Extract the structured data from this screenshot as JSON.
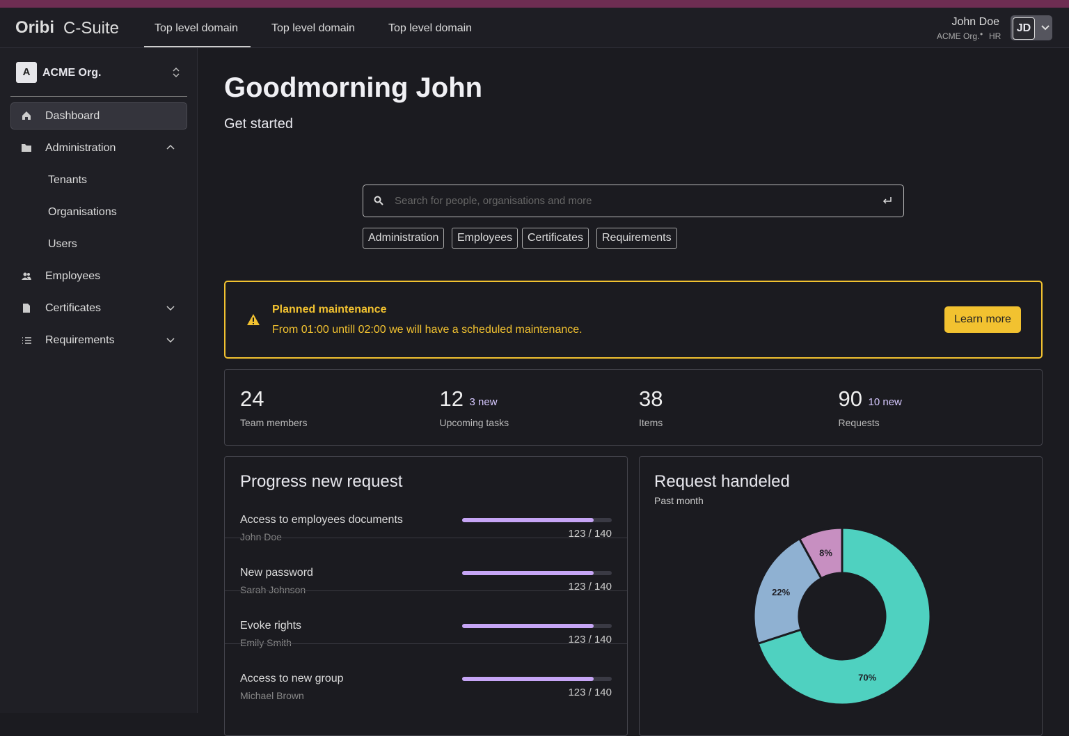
{
  "header": {
    "brand": "Oribi",
    "product": "C-Suite",
    "tabs": [
      "Top level domain",
      "Top level domain",
      "Top level domain"
    ],
    "user": {
      "name": "John Doe",
      "org": "ACME Org.",
      "role": "HR",
      "initials": "JD"
    }
  },
  "sidebar": {
    "org_initial": "A",
    "org_name": "ACME Org.",
    "nav": [
      "Dashboard",
      "Administration",
      "Employees",
      "Certificates",
      "Requirements"
    ],
    "admin_children": [
      "Tenants",
      "Organisations",
      "Users"
    ]
  },
  "main": {
    "greeting": "Goodmorning John",
    "subtitle": "Get started",
    "search_placeholder": "Search for people, organisations and more",
    "chips": [
      "Administration",
      "Employees",
      "Certificates",
      "Requirements"
    ],
    "alert": {
      "title": "Planned maintenance",
      "message": "From 01:00 untill 02:00 we will have a scheduled maintenance.",
      "button": "Learn more"
    },
    "stats": [
      {
        "value": 24,
        "label": "Team members"
      },
      {
        "value": 12,
        "note": "3 new",
        "label": "Upcoming tasks"
      },
      {
        "value": 38,
        "label": "Items"
      },
      {
        "value": 90,
        "note": "10 new",
        "label": "Requests"
      }
    ]
  },
  "progress": {
    "title": "Progress new request",
    "items": [
      {
        "name": "Access to employees documents",
        "person": "John Doe",
        "value": 123,
        "max": 140,
        "label": "123 / 140"
      },
      {
        "name": "New password",
        "person": "Sarah Johnson",
        "value": 123,
        "max": 140,
        "label": "123 / 140"
      },
      {
        "name": "Evoke rights",
        "person": "Emily Smith",
        "value": 123,
        "max": 140,
        "label": "123 / 140"
      },
      {
        "name": "Access to new group",
        "person": "Michael Brown",
        "value": 123,
        "max": 140,
        "label": "123 / 140"
      }
    ]
  },
  "chart_data": {
    "type": "pie",
    "title": "Request handeled",
    "subtitle": "Past month",
    "categories": [
      null,
      null,
      null
    ],
    "values": [
      70,
      22,
      8
    ],
    "value_labels": [
      "70%",
      "22%",
      "8%"
    ],
    "colors": [
      "#4fd1c0",
      "#8fb1d2",
      "#c78fc1"
    ],
    "donut": true
  }
}
